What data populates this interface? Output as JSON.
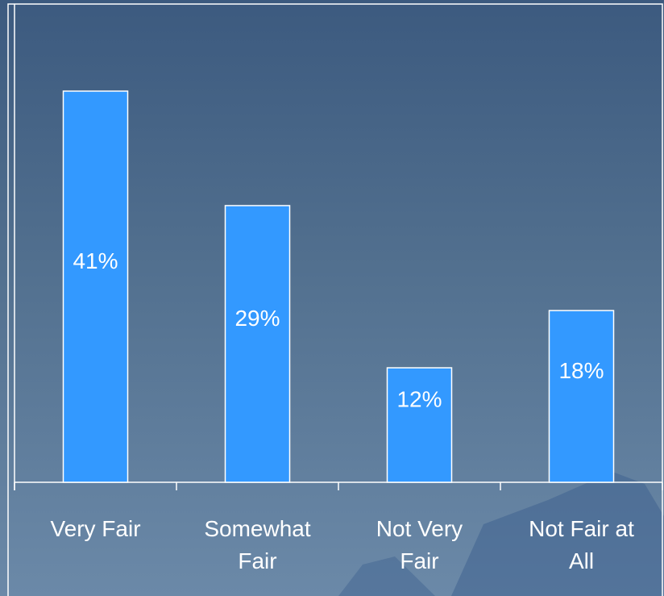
{
  "chart_data": {
    "type": "bar",
    "categories": [
      "Very Fair",
      "Somewhat Fair",
      "Not Very Fair",
      "Not Fair at All"
    ],
    "values": [
      41,
      29,
      12,
      18
    ],
    "value_labels": [
      "41%",
      "29%",
      "12%",
      "18%"
    ],
    "color": "#3399ff"
  }
}
